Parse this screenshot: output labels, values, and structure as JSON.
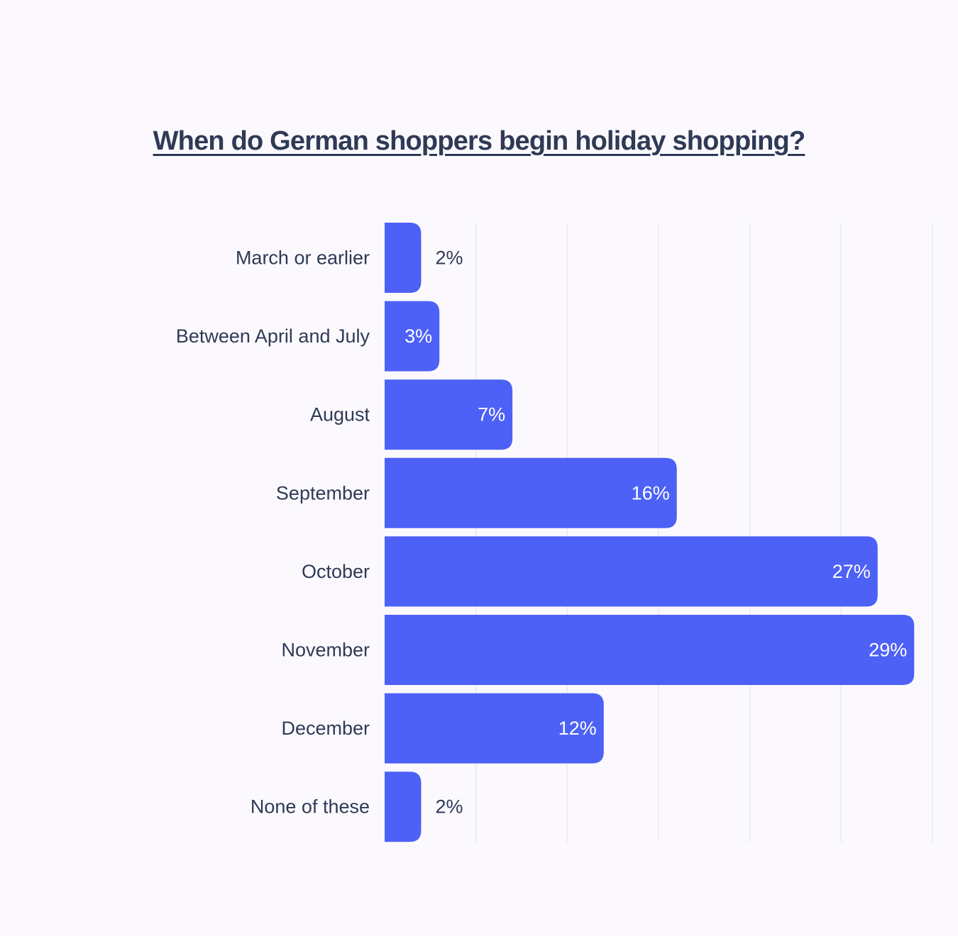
{
  "chart_data": {
    "type": "bar",
    "orientation": "horizontal",
    "title": "When do German shoppers begin holiday shopping?",
    "categories": [
      "March or earlier",
      "Between April and July",
      "August",
      "September",
      "October",
      "November",
      "December",
      "None of these"
    ],
    "values": [
      2,
      3,
      7,
      16,
      27,
      29,
      12,
      2
    ],
    "value_labels": [
      "2%",
      "3%",
      "7%",
      "16%",
      "27%",
      "29%",
      "12%",
      "2%"
    ],
    "xlim": [
      0,
      30
    ],
    "grid": true,
    "x_axis_ticks_visible": false,
    "colors": {
      "bar": "#4d61f6",
      "text": "#2f3a55",
      "grid": "#e9e7f0",
      "background": "#fbf9fe",
      "label_inside": "#ffffff"
    }
  }
}
